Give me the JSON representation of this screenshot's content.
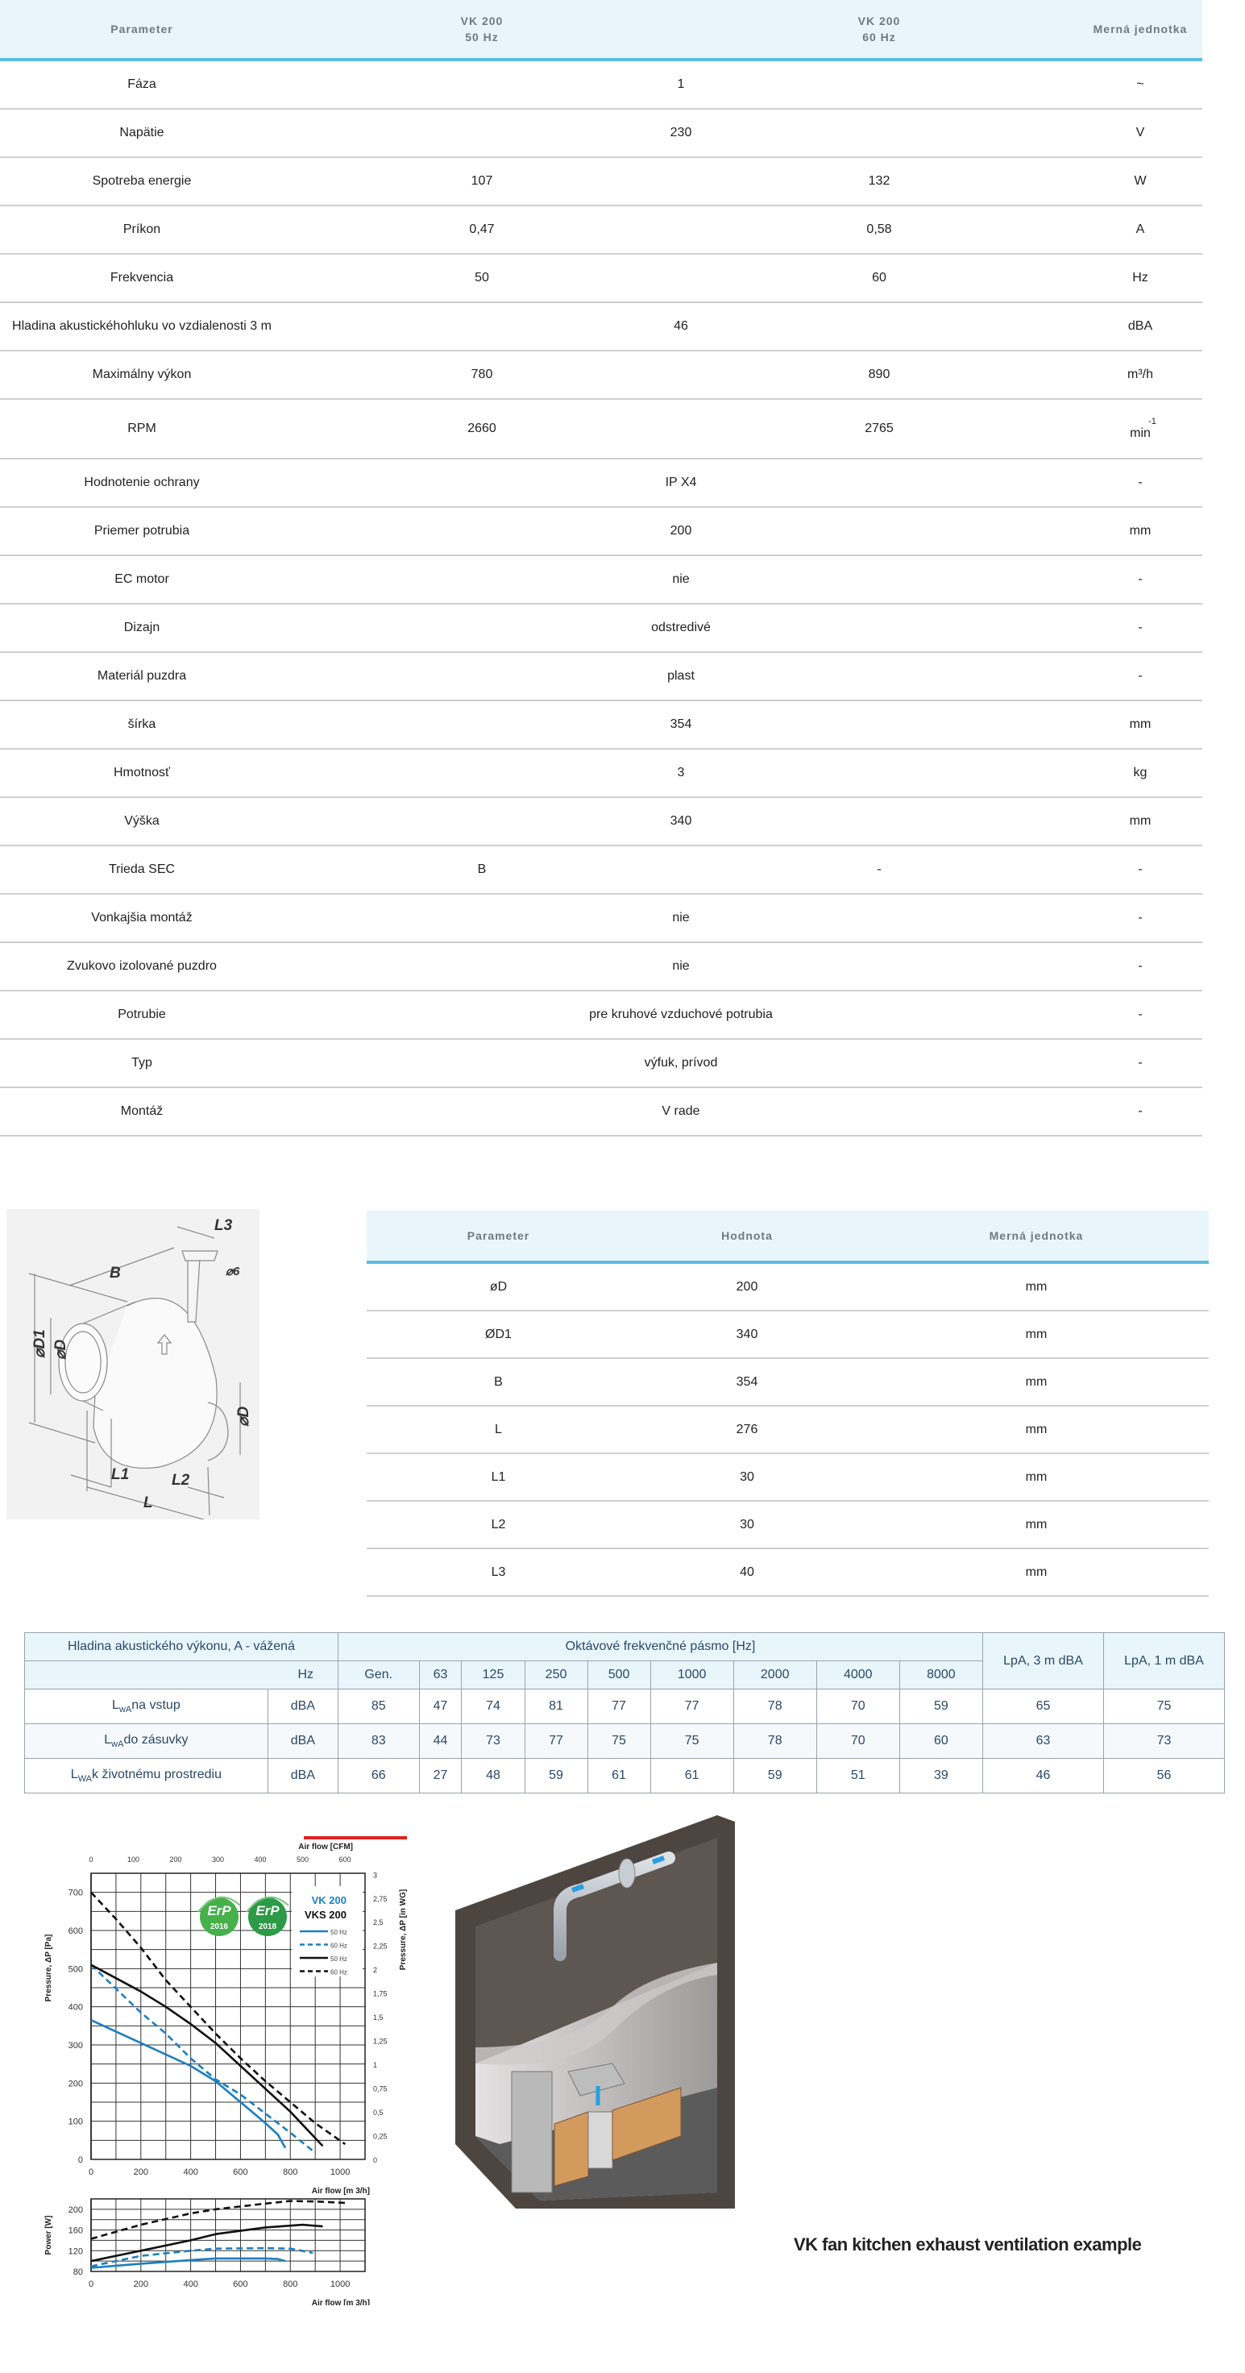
{
  "spec_table": {
    "headers": [
      "Parameter",
      "VK 200",
      "50 Hz",
      "VK 200",
      "60 Hz",
      "Merná jednotka"
    ],
    "rows": [
      {
        "param": "Fáza",
        "merged": "1",
        "unit": "~"
      },
      {
        "param": "Napätie",
        "merged": "230",
        "unit": "V"
      },
      {
        "param": "Spotreba energie",
        "v50": "107",
        "v60": "132",
        "unit": "W"
      },
      {
        "param": "Príkon",
        "v50": "0,47",
        "v60": "0,58",
        "unit": "A"
      },
      {
        "param": "Frekvencia",
        "v50": "50",
        "v60": "60",
        "unit": "Hz"
      },
      {
        "param": "Hladina akustickéhohluku vo vzdialenosti 3 m",
        "merged": "46",
        "unit": "dBA"
      },
      {
        "param": "Maximálny výkon",
        "v50": "780",
        "v60": "890",
        "unit": "m³/h"
      },
      {
        "param": "RPM",
        "v50": "2660",
        "v60": "2765",
        "unit": "min",
        "unit_sup": "-1"
      },
      {
        "param": "Hodnotenie ochrany",
        "merged": "IP X4",
        "unit": "-"
      },
      {
        "param": "Priemer potrubia",
        "merged": "200",
        "unit": "mm"
      },
      {
        "param": "EC motor",
        "merged": "nie",
        "unit": "-"
      },
      {
        "param": "Dizajn",
        "merged": "odstredivé",
        "unit": "-"
      },
      {
        "param": "Materiál puzdra",
        "merged": "plast",
        "unit": "-"
      },
      {
        "param": "šírka",
        "merged": "354",
        "unit": "mm"
      },
      {
        "param": "Hmotnosť",
        "merged": "3",
        "unit": "kg"
      },
      {
        "param": "Výška",
        "merged": "340",
        "unit": "mm"
      },
      {
        "param": "Trieda SEC",
        "v50": "B",
        "v60": "-",
        "unit": "-"
      },
      {
        "param": "Vonkajšia montáž",
        "merged": "nie",
        "unit": "-"
      },
      {
        "param": "Zvukovo izolované puzdro",
        "merged": "nie",
        "unit": "-"
      },
      {
        "param": "Potrubie",
        "merged": "pre kruhové vzduchové potrubia",
        "unit": "-"
      },
      {
        "param": "Typ",
        "merged": "výfuk, prívod",
        "unit": "-"
      },
      {
        "param": "Montáž",
        "merged": "V rade",
        "unit": "-"
      }
    ]
  },
  "dimension_drawing": {
    "labels": [
      "L3",
      "⌀6",
      "B",
      "⌀D1",
      "⌀D",
      "⌀D",
      "L1",
      "L2",
      "L"
    ]
  },
  "dimension_table": {
    "headers": [
      "Parameter",
      "Hodnota",
      "Merná jednotka"
    ],
    "rows": [
      [
        "øD",
        "200",
        "mm"
      ],
      [
        "ØD1",
        "340",
        "mm"
      ],
      [
        "B",
        "354",
        "mm"
      ],
      [
        "L",
        "276",
        "mm"
      ],
      [
        "L1",
        "30",
        "mm"
      ],
      [
        "L2",
        "30",
        "mm"
      ],
      [
        "L3",
        "40",
        "mm"
      ]
    ]
  },
  "acoustic_table": {
    "title": "Hladina akustického výkonu, A - vážená",
    "band_title": "Oktávové frekvenčné pásmo [Hz]",
    "hz_label": "Hz",
    "bands": [
      "Gen.",
      "63",
      "125",
      "250",
      "500",
      "1000",
      "2000",
      "4000",
      "8000"
    ],
    "lpa3": "LpA, 3 m dBA",
    "lpa1": "LpA, 1 m dBA",
    "rows": [
      {
        "l": "L",
        "sub": "wA",
        "label": "na vstup",
        "unit": "dBA",
        "values": [
          "85",
          "47",
          "74",
          "81",
          "77",
          "77",
          "78",
          "70",
          "59"
        ],
        "lpa3": "65",
        "lpa1": "75"
      },
      {
        "l": "L",
        "sub": "wA",
        "label": "do zásuvky",
        "unit": "dBA",
        "values": [
          "83",
          "44",
          "73",
          "77",
          "75",
          "75",
          "78",
          "70",
          "60"
        ],
        "lpa3": "63",
        "lpa1": "73"
      },
      {
        "l": "L",
        "sub": "WA",
        "label": "k životnému prostrediu",
        "unit": "dBA",
        "values": [
          "66",
          "27",
          "48",
          "59",
          "61",
          "61",
          "59",
          "51",
          "39"
        ],
        "lpa3": "46",
        "lpa1": "56"
      }
    ]
  },
  "badges": [
    {
      "top": "ErP",
      "year": "2016"
    },
    {
      "top": "ErP",
      "year": "2018"
    }
  ],
  "colors": {
    "accent": "#5bbde0",
    "header_bg": "#e8f6fc",
    "vk_blue": "#1b7fc1",
    "vks_black": "#111111",
    "red_bar": "#e02020",
    "erp_green": "#3aa648"
  },
  "chart_data": [
    {
      "type": "line",
      "xlabel": "Air flow [m 3/h]",
      "x2label": "Air flow [CFM]",
      "ylabel": "Pressure, ΔP [Pa]",
      "y2label": "Pressure, ΔP [in WG]",
      "xlim": [
        0,
        1100
      ],
      "ylim": [
        0,
        750
      ],
      "x_ticks": [
        "0",
        "200",
        "400",
        "600",
        "800",
        "1000"
      ],
      "x2_ticks": [
        "0",
        "100",
        "200",
        "300",
        "400",
        "500",
        "600"
      ],
      "y_ticks": [
        "0",
        "100",
        "200",
        "300",
        "400",
        "500",
        "600",
        "700"
      ],
      "y2_ticks": [
        "0",
        "0,25",
        "0,5",
        "0,75",
        "1",
        "1,25",
        "1,5",
        "1,75",
        "2",
        "2,25",
        "2,5",
        "2,75",
        "3"
      ],
      "grid": true,
      "legend": {
        "placement": "top-right",
        "groups": [
          {
            "name": "VK 200",
            "entries": [
              "50 Hz",
              "60 Hz"
            ]
          },
          {
            "name": "VKS 200",
            "entries": [
              "50 Hz",
              "60 Hz"
            ]
          }
        ]
      },
      "series": [
        {
          "name": "VK 200 50 Hz",
          "style": "solid",
          "color": "#1b7fc1",
          "points": [
            [
              0,
              365
            ],
            [
              200,
              305
            ],
            [
              400,
              245
            ],
            [
              500,
              205
            ],
            [
              600,
              150
            ],
            [
              700,
              95
            ],
            [
              750,
              65
            ],
            [
              780,
              30
            ]
          ]
        },
        {
          "name": "VK 200 60 Hz",
          "style": "dashed",
          "color": "#1b7fc1",
          "points": [
            [
              0,
              510
            ],
            [
              200,
              385
            ],
            [
              300,
              330
            ],
            [
              400,
              265
            ],
            [
              500,
              210
            ],
            [
              600,
              170
            ],
            [
              700,
              120
            ],
            [
              800,
              70
            ],
            [
              895,
              20
            ]
          ]
        },
        {
          "name": "VKS 200 50 Hz",
          "style": "solid",
          "color": "#111111",
          "points": [
            [
              0,
              510
            ],
            [
              200,
              440
            ],
            [
              300,
              400
            ],
            [
              400,
              355
            ],
            [
              500,
              305
            ],
            [
              600,
              245
            ],
            [
              700,
              185
            ],
            [
              800,
              125
            ],
            [
              930,
              35
            ]
          ]
        },
        {
          "name": "VKS 200 60 Hz",
          "style": "dashed",
          "color": "#111111",
          "points": [
            [
              0,
              700
            ],
            [
              100,
              630
            ],
            [
              200,
              555
            ],
            [
              300,
              470
            ],
            [
              400,
              400
            ],
            [
              500,
              330
            ],
            [
              600,
              265
            ],
            [
              700,
              205
            ],
            [
              800,
              150
            ],
            [
              900,
              95
            ],
            [
              1020,
              40
            ]
          ]
        }
      ]
    },
    {
      "type": "line",
      "xlabel": "Air flow [m 3/h]",
      "ylabel": "Power  [W]",
      "xlim": [
        0,
        1100
      ],
      "ylim": [
        80,
        220
      ],
      "x_ticks": [
        "0",
        "200",
        "400",
        "600",
        "800",
        "1000"
      ],
      "y_ticks": [
        "80",
        "120",
        "160",
        "200"
      ],
      "grid": true,
      "series": [
        {
          "name": "VK 200 50 Hz",
          "style": "solid",
          "color": "#1b7fc1",
          "points": [
            [
              0,
              87
            ],
            [
              200,
              95
            ],
            [
              400,
              102
            ],
            [
              500,
              105
            ],
            [
              700,
              105
            ],
            [
              750,
              104
            ],
            [
              780,
              100
            ]
          ]
        },
        {
          "name": "VK 200 60 Hz",
          "style": "dashed",
          "color": "#1b7fc1",
          "points": [
            [
              0,
              90
            ],
            [
              200,
              110
            ],
            [
              400,
              120
            ],
            [
              500,
              124
            ],
            [
              700,
              125
            ],
            [
              800,
              124
            ],
            [
              890,
              116
            ]
          ]
        },
        {
          "name": "VKS 200 50 Hz",
          "style": "solid",
          "color": "#111111",
          "points": [
            [
              0,
              100
            ],
            [
              200,
              120
            ],
            [
              400,
              140
            ],
            [
              500,
              152
            ],
            [
              700,
              165
            ],
            [
              850,
              170
            ],
            [
              930,
              167
            ]
          ]
        },
        {
          "name": "VKS 200 60 Hz",
          "style": "dashed",
          "color": "#111111",
          "points": [
            [
              0,
              143
            ],
            [
              200,
              170
            ],
            [
              400,
              192
            ],
            [
              500,
              200
            ],
            [
              700,
              211
            ],
            [
              800,
              216
            ],
            [
              900,
              215
            ],
            [
              1030,
              212
            ]
          ]
        }
      ]
    }
  ],
  "kitchen": {
    "caption": "VK fan kitchen exhaust ventilation example"
  }
}
